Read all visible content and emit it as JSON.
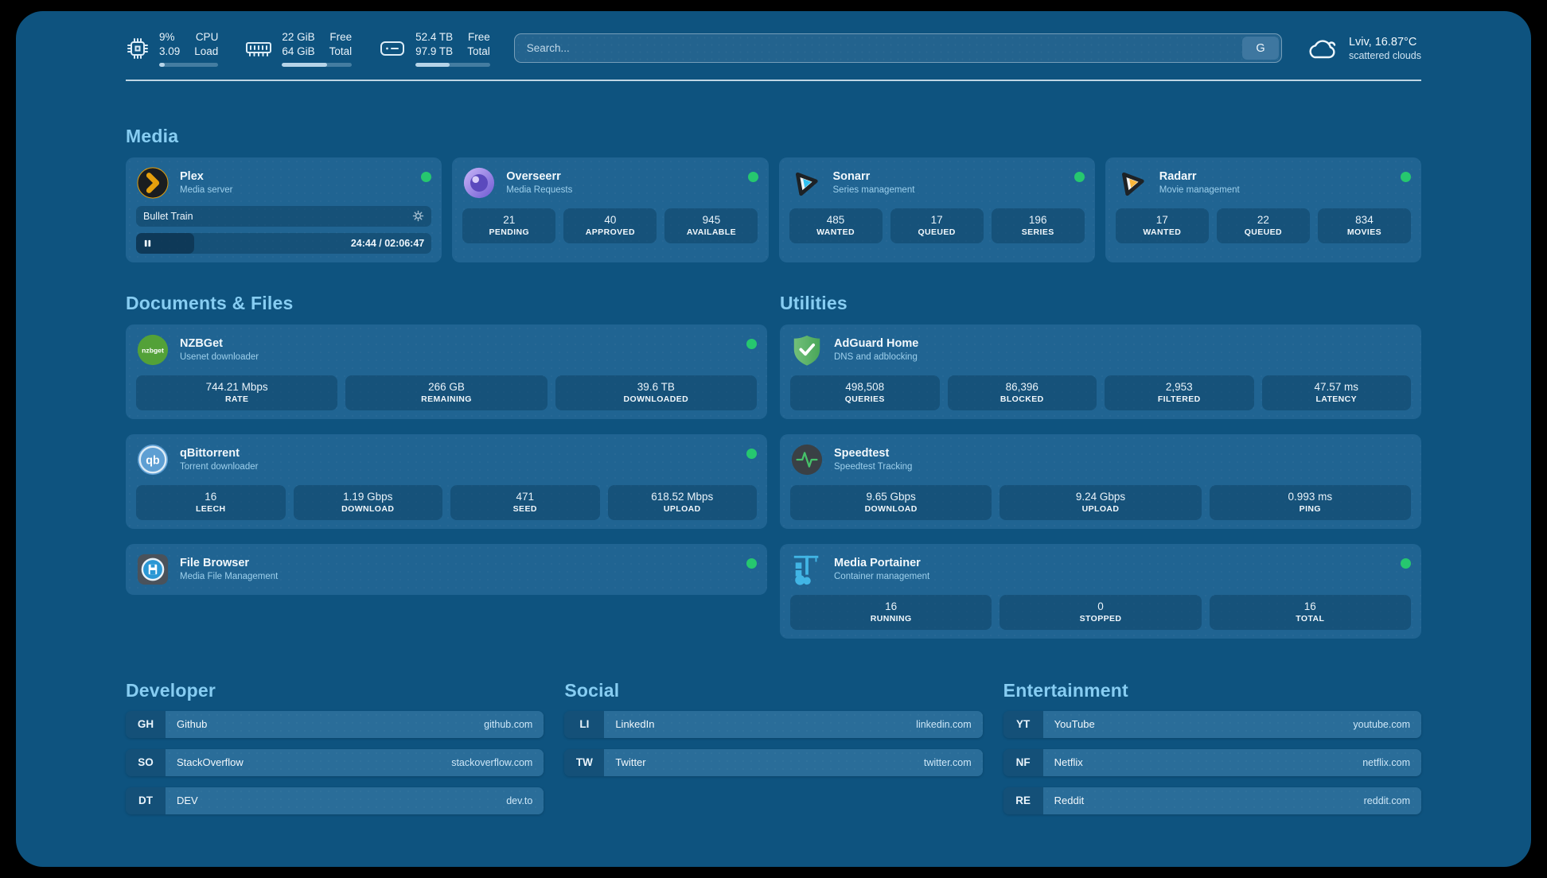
{
  "header": {
    "stats": [
      {
        "name": "cpu",
        "col1": [
          "9%",
          "3.09"
        ],
        "col2": [
          "CPU",
          "Load"
        ],
        "progress": 9
      },
      {
        "name": "memory",
        "col1": [
          "22 GiB",
          "64 GiB"
        ],
        "col2": [
          "Free",
          "Total"
        ],
        "progress": 65
      },
      {
        "name": "disk",
        "col1": [
          "52.4 TB",
          "97.9 TB"
        ],
        "col2": [
          "Free",
          "Total"
        ],
        "progress": 46
      }
    ],
    "search": {
      "placeholder": "Search...",
      "button_label": "G"
    },
    "weather": {
      "location": "Lviv, 16.87°C",
      "condition": "scattered clouds"
    }
  },
  "sections": {
    "media": {
      "title": "Media",
      "cards": [
        {
          "title": "Plex",
          "subtitle": "Media server",
          "status": "online",
          "now_playing": {
            "title": "Bullet Train",
            "time": "24:44 / 02:06:47",
            "progress_pct": 19.6
          }
        },
        {
          "title": "Overseerr",
          "subtitle": "Media Requests",
          "status": "online",
          "stats": [
            {
              "value": "21",
              "label": "PENDING"
            },
            {
              "value": "40",
              "label": "APPROVED"
            },
            {
              "value": "945",
              "label": "AVAILABLE"
            }
          ]
        },
        {
          "title": "Sonarr",
          "subtitle": "Series management",
          "status": "online",
          "stats": [
            {
              "value": "485",
              "label": "WANTED"
            },
            {
              "value": "17",
              "label": "QUEUED"
            },
            {
              "value": "196",
              "label": "SERIES"
            }
          ]
        },
        {
          "title": "Radarr",
          "subtitle": "Movie management",
          "status": "online",
          "stats": [
            {
              "value": "17",
              "label": "WANTED"
            },
            {
              "value": "22",
              "label": "QUEUED"
            },
            {
              "value": "834",
              "label": "MOVIES"
            }
          ]
        }
      ]
    },
    "documents": {
      "title": "Documents & Files",
      "cards": [
        {
          "title": "NZBGet",
          "subtitle": "Usenet downloader",
          "status": "online",
          "stats": [
            {
              "value": "744.21 Mbps",
              "label": "RATE"
            },
            {
              "value": "266 GB",
              "label": "REMAINING"
            },
            {
              "value": "39.6 TB",
              "label": "DOWNLOADED"
            }
          ]
        },
        {
          "title": "qBittorrent",
          "subtitle": "Torrent downloader",
          "status": "online",
          "stats": [
            {
              "value": "16",
              "label": "LEECH"
            },
            {
              "value": "1.19 Gbps",
              "label": "DOWNLOAD"
            },
            {
              "value": "471",
              "label": "SEED"
            },
            {
              "value": "618.52 Mbps",
              "label": "UPLOAD"
            }
          ]
        },
        {
          "title": "File Browser",
          "subtitle": "Media File Management",
          "status": "online"
        }
      ]
    },
    "utilities": {
      "title": "Utilities",
      "cards": [
        {
          "title": "AdGuard Home",
          "subtitle": "DNS and adblocking",
          "stats": [
            {
              "value": "498,508",
              "label": "QUERIES"
            },
            {
              "value": "86,396",
              "label": "BLOCKED"
            },
            {
              "value": "2,953",
              "label": "FILTERED"
            },
            {
              "value": "47.57 ms",
              "label": "LATENCY"
            }
          ]
        },
        {
          "title": "Speedtest",
          "subtitle": "Speedtest Tracking",
          "stats": [
            {
              "value": "9.65 Gbps",
              "label": "DOWNLOAD"
            },
            {
              "value": "9.24 Gbps",
              "label": "UPLOAD"
            },
            {
              "value": "0.993 ms",
              "label": "PING"
            }
          ]
        },
        {
          "title": "Media Portainer",
          "subtitle": "Container management",
          "status": "online",
          "stats": [
            {
              "value": "16",
              "label": "RUNNING"
            },
            {
              "value": "0",
              "label": "STOPPED"
            },
            {
              "value": "16",
              "label": "TOTAL"
            }
          ]
        }
      ]
    },
    "links": [
      {
        "title": "Developer",
        "items": [
          {
            "abbr": "GH",
            "name": "Github",
            "url": "github.com"
          },
          {
            "abbr": "SO",
            "name": "StackOverflow",
            "url": "stackoverflow.com"
          },
          {
            "abbr": "DT",
            "name": "DEV",
            "url": "dev.to"
          }
        ]
      },
      {
        "title": "Social",
        "items": [
          {
            "abbr": "LI",
            "name": "LinkedIn",
            "url": "linkedin.com"
          },
          {
            "abbr": "TW",
            "name": "Twitter",
            "url": "twitter.com"
          }
        ]
      },
      {
        "title": "Entertainment",
        "items": [
          {
            "abbr": "YT",
            "name": "YouTube",
            "url": "youtube.com"
          },
          {
            "abbr": "NF",
            "name": "Netflix",
            "url": "netflix.com"
          },
          {
            "abbr": "RE",
            "name": "Reddit",
            "url": "reddit.com"
          }
        ]
      }
    ]
  },
  "colors": {
    "status_online": "#26c76f",
    "accent": "#87cdf2"
  }
}
